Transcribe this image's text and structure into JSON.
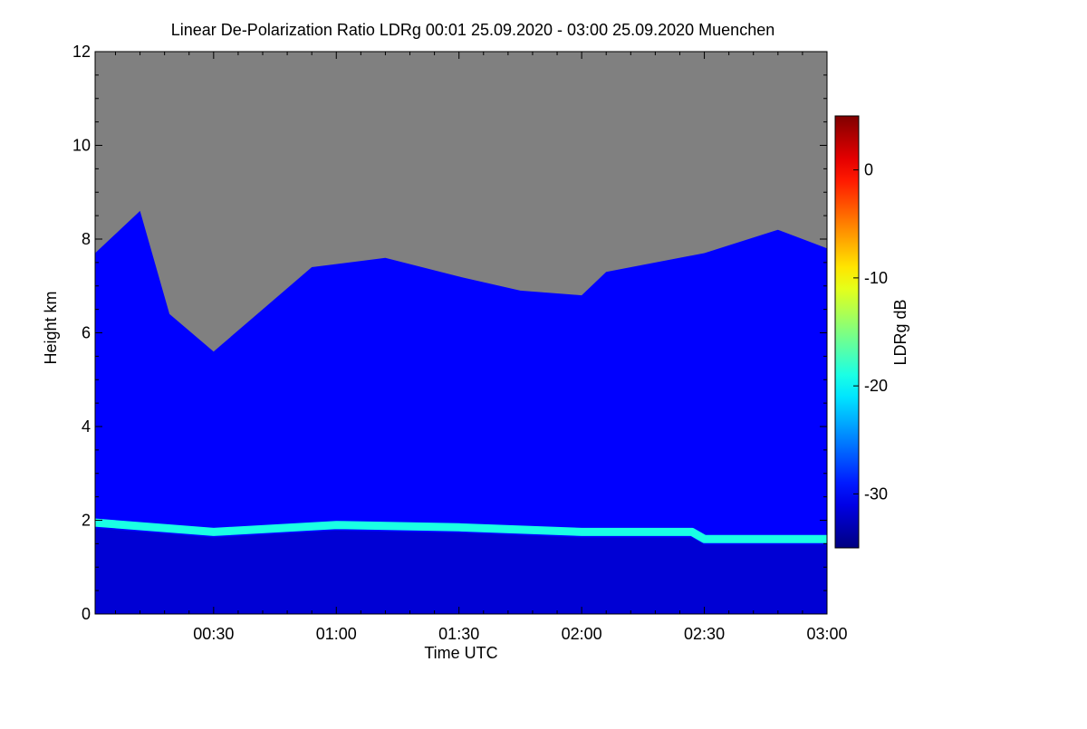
{
  "chart_data": {
    "type": "heatmap",
    "title": "Linear De-Polarization Ratio LDRg   00:01 25.09.2020 - 03:00 25.09.2020 Muenchen",
    "xlabel": "Time UTC",
    "ylabel": "Height km",
    "x_tick_labels": [
      "00:30",
      "01:00",
      "01:30",
      "02:00",
      "02:30",
      "03:00"
    ],
    "x_tick_values_hours": [
      0.5,
      1.0,
      1.5,
      2.0,
      2.5,
      3.0
    ],
    "xlim_hours": [
      0.017,
      3.0
    ],
    "ylim": [
      0,
      12
    ],
    "y_ticks": [
      0,
      2,
      4,
      6,
      8,
      10,
      12
    ],
    "colorbar": {
      "label": "LDRg dB",
      "range": [
        -35,
        5
      ],
      "ticks": [
        -30,
        -20,
        -10,
        0
      ],
      "colormap": "jet"
    },
    "no_data_color": "#808080",
    "features": {
      "layer_height_km": [
        [
          0.0,
          1.95
        ],
        [
          0.5,
          1.75
        ],
        [
          1.0,
          1.9
        ],
        [
          1.5,
          1.85
        ],
        [
          2.0,
          1.75
        ],
        [
          2.45,
          1.75
        ],
        [
          2.5,
          1.6
        ],
        [
          3.0,
          1.6
        ]
      ],
      "layer_ldr_db": -19,
      "background_ldr_db": -30,
      "signal_top_height_km": [
        [
          0.0,
          7.7
        ],
        [
          0.2,
          8.6
        ],
        [
          0.32,
          6.4
        ],
        [
          0.5,
          5.6
        ],
        [
          0.7,
          6.5
        ],
        [
          0.9,
          7.4
        ],
        [
          1.2,
          7.6
        ],
        [
          1.5,
          7.2
        ],
        [
          1.75,
          6.9
        ],
        [
          2.0,
          6.8
        ],
        [
          2.1,
          7.3
        ],
        [
          2.5,
          7.7
        ],
        [
          2.8,
          8.2
        ],
        [
          3.0,
          7.8
        ]
      ]
    }
  }
}
